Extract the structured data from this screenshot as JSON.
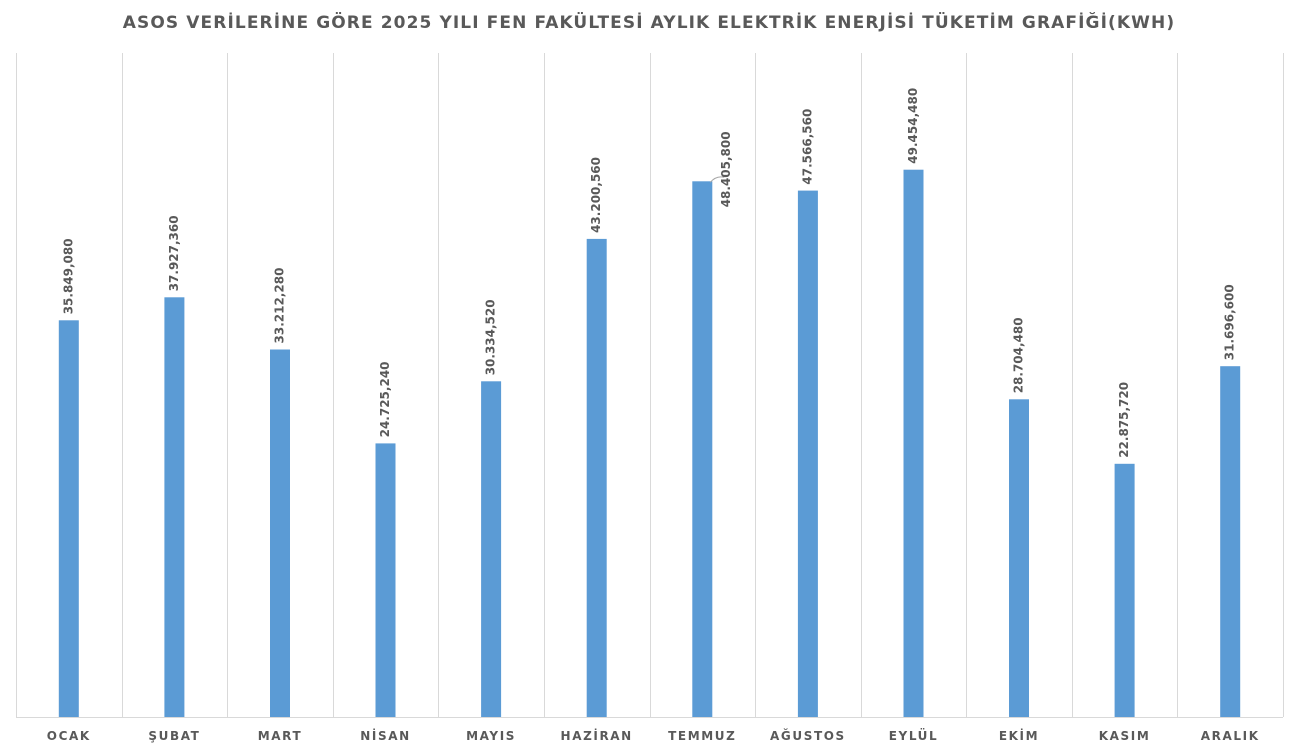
{
  "chart_data": {
    "type": "bar",
    "title": "ASOS VERİLERİNE GÖRE 2025 YILI FEN FAKÜLTESİ AYLIK ELEKTRİK ENERJİSİ TÜKETİM GRAFİĞİ(KWH)",
    "xlabel": "",
    "ylabel": "",
    "categories": [
      "OCAK",
      "ŞUBAT",
      "MART",
      "NİSAN",
      "MAYIS",
      "HAZİRAN",
      "TEMMUZ",
      "AĞUSTOS",
      "EYLÜL",
      "EKİM",
      "KASIM",
      "ARALIK"
    ],
    "values": [
      35849080,
      37927360,
      33212280,
      24725240,
      30334520,
      43200560,
      48405800,
      47566560,
      49454480,
      28704480,
      22875720,
      31696600
    ],
    "data_labels": [
      "35.849,080",
      "37.927,360",
      "33.212,280",
      "24.725,240",
      "30.334,520",
      "43.200,560",
      "48.405,800",
      "47.566,560",
      "49.454,480",
      "28.704,480",
      "22.875,720",
      "31.696,600"
    ],
    "ylim": [
      0,
      60000000
    ],
    "grid": "vertical separators between categories",
    "bar_color": "#5b9bd5",
    "label_color": "#595959",
    "grid_color": "#d9d9d9"
  }
}
